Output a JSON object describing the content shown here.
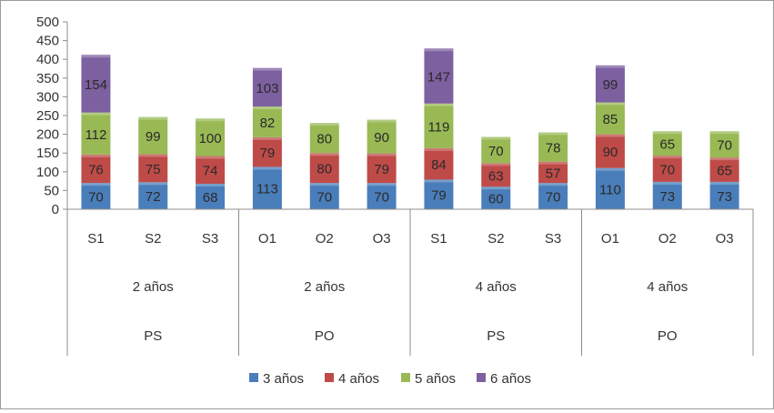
{
  "chart_data": {
    "type": "bar",
    "stacked": true,
    "title": "",
    "xlabel": "",
    "ylabel": "",
    "ylim": [
      0,
      500
    ],
    "yticks": [
      0,
      50,
      100,
      150,
      200,
      250,
      300,
      350,
      400,
      450,
      500
    ],
    "grid": false,
    "legend_position": "bottom",
    "categories": [
      "S1",
      "S2",
      "S3",
      "O1",
      "O2",
      "O3",
      "S1",
      "S2",
      "S3",
      "O1",
      "O2",
      "O3"
    ],
    "group_level_1": [
      {
        "label": "2 años",
        "span": 3
      },
      {
        "label": "2 años",
        "span": 3
      },
      {
        "label": "4 años",
        "span": 3
      },
      {
        "label": "4 años",
        "span": 3
      }
    ],
    "group_level_2": [
      {
        "label": "PS",
        "span": 3
      },
      {
        "label": "PO",
        "span": 3
      },
      {
        "label": "PS",
        "span": 3
      },
      {
        "label": "PO",
        "span": 3
      }
    ],
    "series": [
      {
        "name": "3 años",
        "color": "#4a7ebb",
        "values": [
          70,
          72,
          68,
          113,
          70,
          70,
          79,
          60,
          70,
          110,
          73,
          73
        ]
      },
      {
        "name": "4 años",
        "color": "#be4b48",
        "values": [
          76,
          75,
          74,
          79,
          80,
          79,
          84,
          63,
          57,
          90,
          70,
          65
        ]
      },
      {
        "name": "5 años",
        "color": "#98b954",
        "values": [
          112,
          99,
          100,
          82,
          80,
          90,
          119,
          70,
          78,
          85,
          65,
          70
        ]
      },
      {
        "name": "6 años",
        "color": "#7d60a0",
        "values": [
          154,
          null,
          null,
          103,
          null,
          null,
          147,
          null,
          null,
          99,
          null,
          null
        ]
      }
    ]
  }
}
